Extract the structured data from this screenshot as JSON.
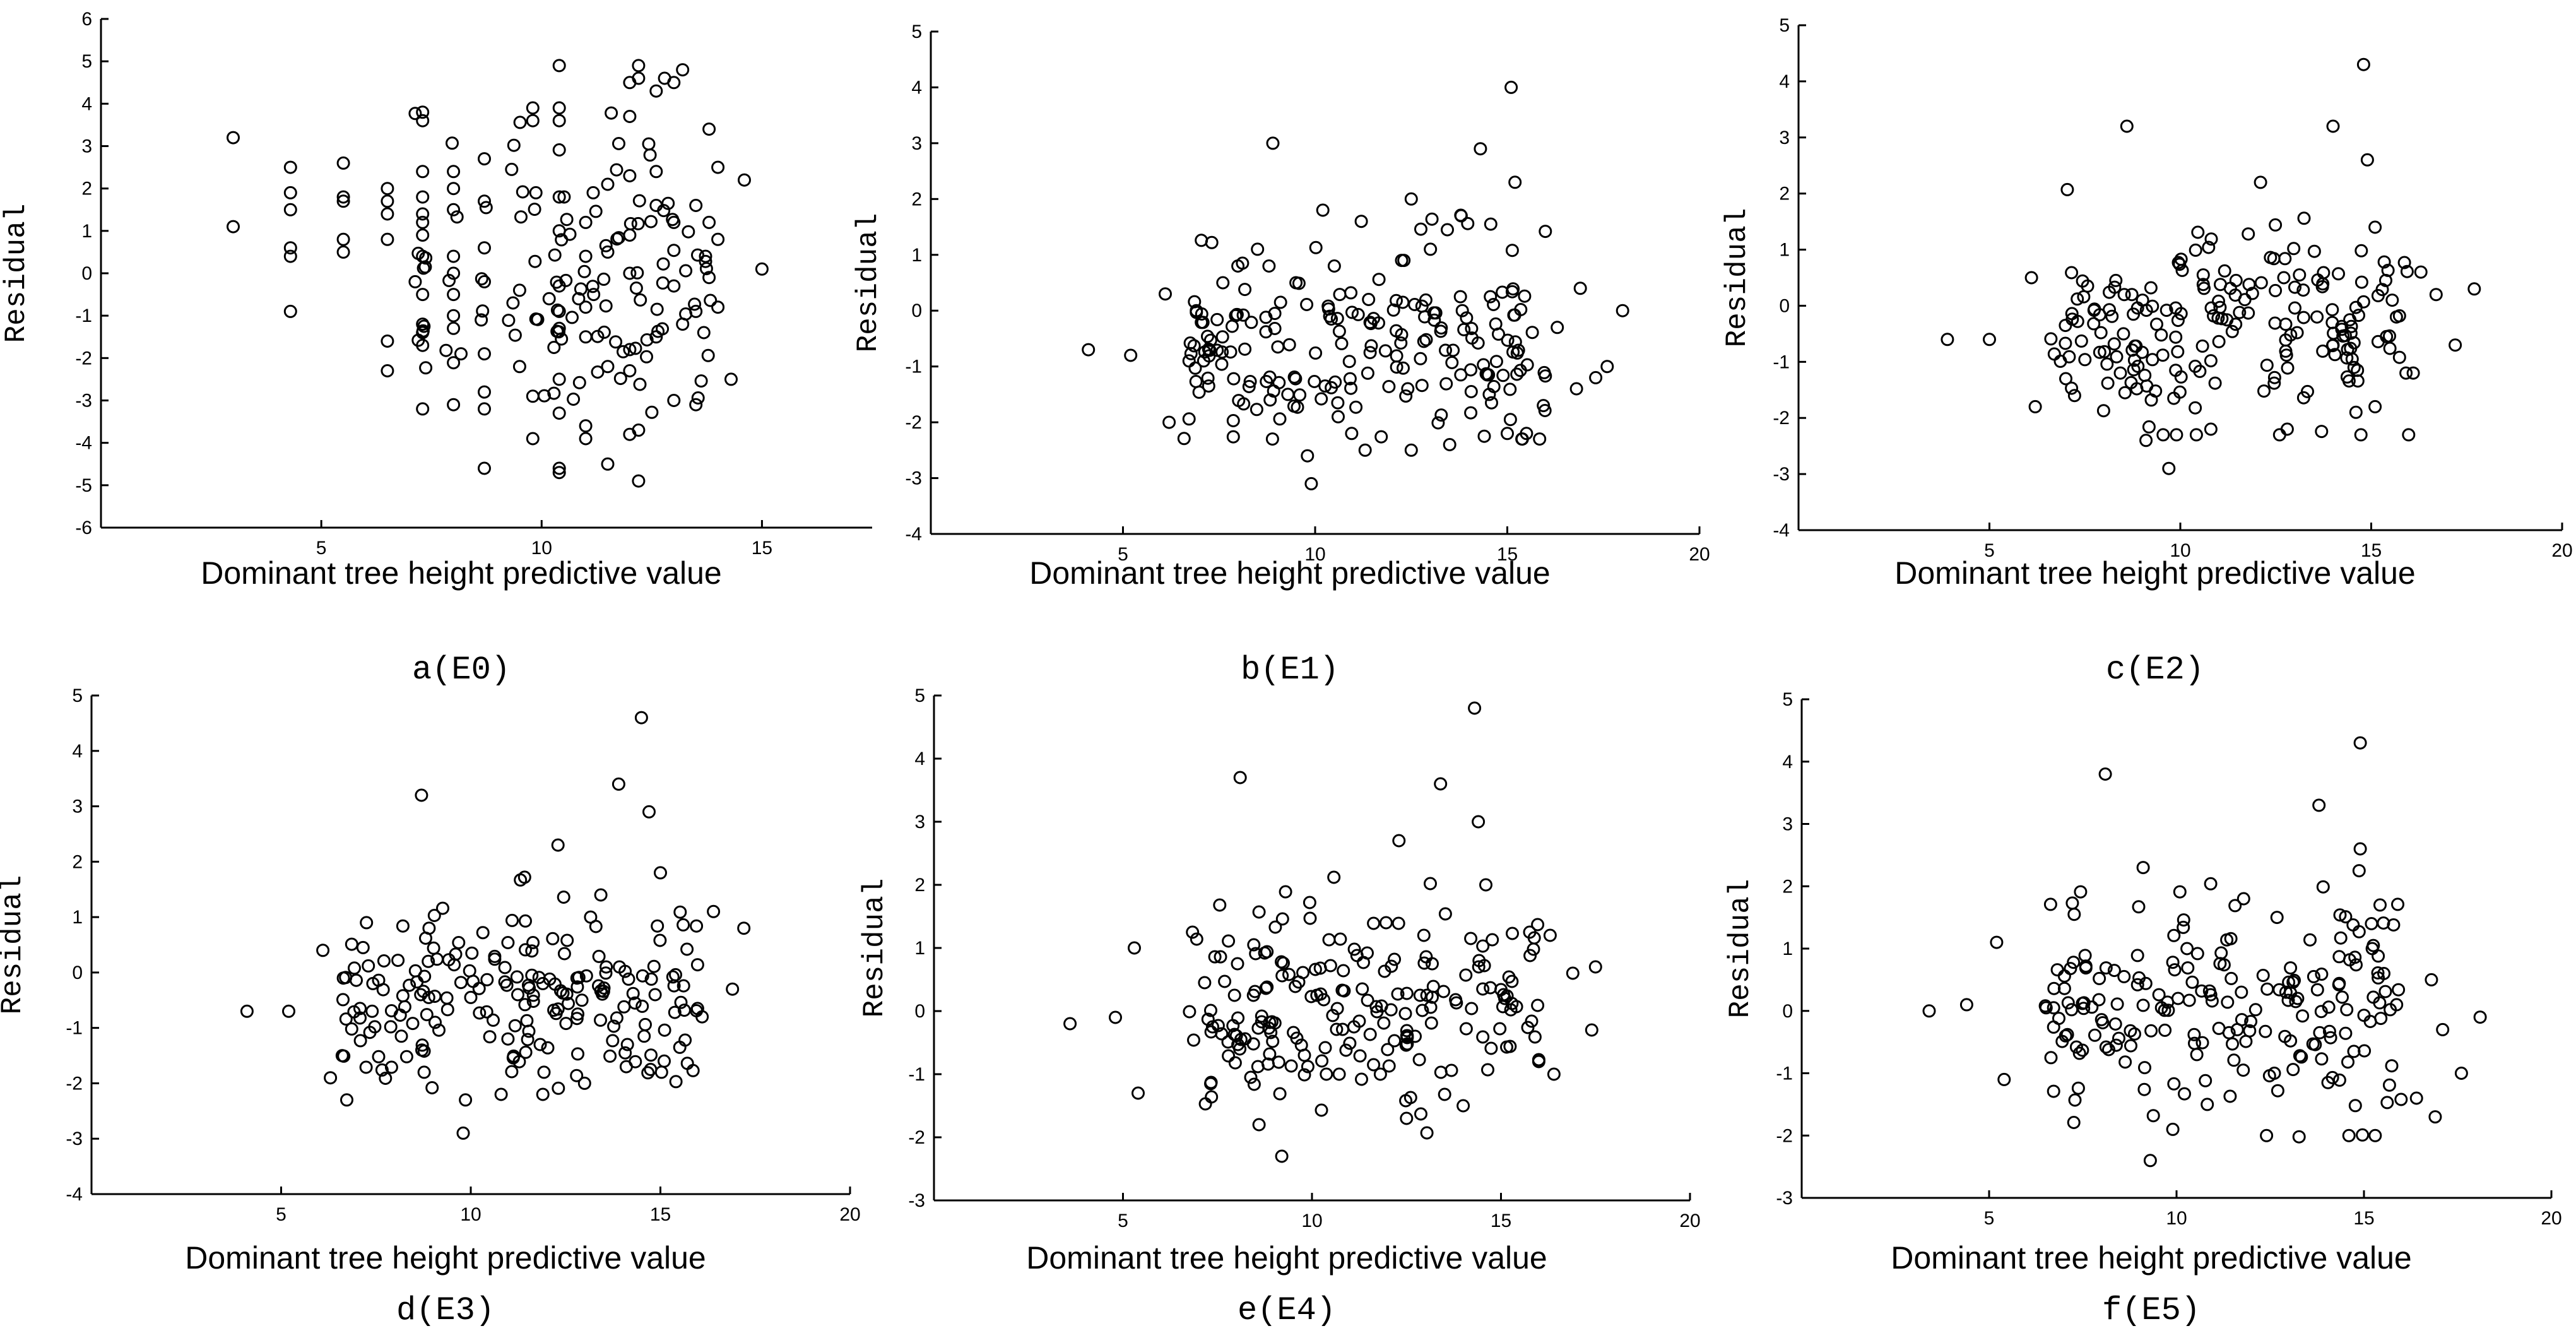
{
  "chart_data": [
    {
      "type": "scatter",
      "caption": "a(E0)",
      "xlabel": "Dominant tree height predictive value",
      "ylabel": "Residual",
      "xlim": [
        0,
        17.5
      ],
      "ylim": [
        -6,
        6
      ],
      "xticks": [
        5,
        10,
        15
      ],
      "yticks": [
        -6,
        -5,
        -4,
        -3,
        -2,
        -1,
        0,
        1,
        2,
        3,
        4,
        5,
        6
      ],
      "seed": 11,
      "points": [
        [
          3.0,
          3.2
        ],
        [
          3.0,
          1.1
        ],
        [
          4.3,
          2.5
        ],
        [
          4.3,
          1.9
        ],
        [
          4.3,
          1.5
        ],
        [
          4.3,
          0.6
        ],
        [
          4.3,
          0.4
        ],
        [
          4.3,
          -0.9
        ],
        [
          5.5,
          2.6
        ],
        [
          5.5,
          1.8
        ],
        [
          5.5,
          1.7
        ],
        [
          5.5,
          0.8
        ],
        [
          5.5,
          0.5
        ],
        [
          6.5,
          2.0
        ],
        [
          6.5,
          1.7
        ],
        [
          6.5,
          1.4
        ],
        [
          6.5,
          0.8
        ],
        [
          6.5,
          -1.6
        ],
        [
          6.5,
          -2.3
        ],
        [
          7.3,
          3.8
        ],
        [
          7.3,
          3.6
        ],
        [
          7.3,
          2.4
        ],
        [
          7.3,
          1.8
        ],
        [
          7.3,
          1.4
        ],
        [
          7.3,
          1.2
        ],
        [
          7.3,
          0.9
        ],
        [
          7.3,
          0.4
        ],
        [
          7.3,
          -0.5
        ],
        [
          7.3,
          -1.2
        ],
        [
          7.3,
          -1.4
        ],
        [
          7.3,
          -1.7
        ],
        [
          7.3,
          -3.2
        ],
        [
          8.0,
          2.4
        ],
        [
          8.0,
          2.0
        ],
        [
          8.0,
          1.5
        ],
        [
          8.0,
          0.4
        ],
        [
          8.0,
          0.0
        ],
        [
          8.0,
          -0.5
        ],
        [
          8.0,
          -1.0
        ],
        [
          8.0,
          -1.3
        ],
        [
          8.0,
          -3.1
        ],
        [
          8.7,
          2.7
        ],
        [
          8.7,
          1.7
        ],
        [
          8.7,
          0.6
        ],
        [
          8.7,
          -0.2
        ],
        [
          8.7,
          -1.9
        ],
        [
          8.7,
          -2.8
        ],
        [
          8.7,
          -3.2
        ],
        [
          8.7,
          -4.6
        ],
        [
          9.5,
          -0.4
        ],
        [
          9.5,
          -2.2
        ],
        [
          9.8,
          3.9
        ],
        [
          9.8,
          3.6
        ],
        [
          9.8,
          -2.9
        ],
        [
          9.8,
          -3.9
        ],
        [
          10.4,
          4.9
        ],
        [
          10.4,
          3.9
        ],
        [
          10.4,
          3.6
        ],
        [
          10.4,
          1.8
        ],
        [
          10.4,
          1.0
        ],
        [
          10.4,
          -0.3
        ],
        [
          10.4,
          -0.9
        ],
        [
          10.4,
          -1.3
        ],
        [
          10.4,
          -2.5
        ],
        [
          10.4,
          -3.3
        ],
        [
          10.4,
          -4.6
        ],
        [
          10.4,
          -4.7
        ],
        [
          11.0,
          1.2
        ],
        [
          11.0,
          0.4
        ],
        [
          11.0,
          -0.8
        ],
        [
          11.0,
          -1.5
        ],
        [
          11.0,
          -3.6
        ],
        [
          11.0,
          -3.9
        ],
        [
          11.5,
          2.1
        ],
        [
          11.5,
          0.5
        ],
        [
          11.5,
          -2.2
        ],
        [
          11.5,
          -4.5
        ],
        [
          12.0,
          4.5
        ],
        [
          12.0,
          3.7
        ],
        [
          12.0,
          2.3
        ],
        [
          12.0,
          0.9
        ],
        [
          12.0,
          0.0
        ],
        [
          12.0,
          -1.8
        ],
        [
          12.0,
          -2.3
        ],
        [
          12.0,
          -3.8
        ],
        [
          12.2,
          4.9
        ],
        [
          12.2,
          4.6
        ],
        [
          12.2,
          -3.7
        ],
        [
          12.2,
          -4.9
        ],
        [
          12.6,
          4.3
        ],
        [
          12.6,
          2.4
        ],
        [
          12.6,
          1.6
        ],
        [
          12.6,
          -1.5
        ],
        [
          13.0,
          4.5
        ],
        [
          13.0,
          1.2
        ],
        [
          13.0,
          -0.3
        ],
        [
          13.0,
          -3.0
        ],
        [
          13.2,
          4.8
        ],
        [
          13.2,
          -1.2
        ],
        [
          13.5,
          1.6
        ],
        [
          13.5,
          -0.9
        ],
        [
          13.5,
          -3.1
        ],
        [
          13.8,
          3.4
        ],
        [
          13.8,
          1.2
        ],
        [
          13.8,
          -0.1
        ],
        [
          14.0,
          2.5
        ],
        [
          14.0,
          0.8
        ],
        [
          14.0,
          -0.8
        ],
        [
          14.3,
          -2.5
        ],
        [
          14.6,
          2.2
        ],
        [
          15.0,
          0.1
        ]
      ]
    },
    {
      "type": "scatter",
      "caption": "b(E1)",
      "xlabel": "Dominant tree height predictive value",
      "ylabel": "Residual",
      "xlim": [
        0,
        20
      ],
      "ylim": [
        -4,
        5
      ],
      "xticks": [
        5,
        10,
        15,
        20
      ],
      "yticks": [
        -4,
        -3,
        -2,
        -1,
        0,
        1,
        2,
        3,
        4,
        5
      ],
      "seed": 23,
      "points": [
        [
          4.1,
          -0.7
        ],
        [
          5.2,
          -0.8
        ],
        [
          6.1,
          0.3
        ],
        [
          6.2,
          -2.0
        ],
        [
          8.9,
          3.0
        ],
        [
          10.2,
          1.8
        ],
        [
          11.2,
          1.6
        ],
        [
          12.5,
          2.0
        ],
        [
          13.8,
          1.7
        ],
        [
          14.3,
          2.9
        ],
        [
          15.1,
          4.0
        ],
        [
          15.2,
          2.3
        ],
        [
          9.9,
          -3.1
        ],
        [
          9.8,
          -2.6
        ],
        [
          11.3,
          -2.5
        ],
        [
          12.5,
          -2.5
        ],
        [
          13.5,
          -2.4
        ],
        [
          15.0,
          -2.2
        ],
        [
          15.5,
          -2.2
        ],
        [
          16.8,
          -1.4
        ],
        [
          17.3,
          -1.2
        ],
        [
          18.0,
          0.0
        ],
        [
          17.6,
          -1.0
        ],
        [
          16.9,
          0.4
        ],
        [
          16.3,
          -0.3
        ],
        [
          7.6,
          0.5
        ],
        [
          8.5,
          1.1
        ],
        [
          8.8,
          0.8
        ],
        [
          10.5,
          0.8
        ],
        [
          13.0,
          1.1
        ]
      ]
    },
    {
      "type": "scatter",
      "caption": "c(E2)",
      "xlabel": "Dominant tree height predictive value",
      "ylabel": "Residual",
      "xlim": [
        0,
        20
      ],
      "ylim": [
        -4,
        5
      ],
      "xticks": [
        5,
        10,
        15,
        20
      ],
      "yticks": [
        -4,
        -3,
        -2,
        -1,
        0,
        1,
        2,
        3,
        4,
        5
      ],
      "seed": 37,
      "points": [
        [
          3.9,
          -0.6
        ],
        [
          5.0,
          -0.6
        ],
        [
          6.1,
          0.5
        ],
        [
          8.6,
          3.2
        ],
        [
          9.7,
          -2.9
        ],
        [
          12.1,
          2.2
        ],
        [
          14.0,
          3.2
        ],
        [
          14.8,
          4.3
        ],
        [
          14.9,
          2.6
        ],
        [
          15.1,
          1.4
        ],
        [
          16.1,
          -1.2
        ],
        [
          16.3,
          0.6
        ],
        [
          16.7,
          0.2
        ],
        [
          17.2,
          -0.7
        ],
        [
          17.7,
          0.3
        ],
        [
          14.6,
          -1.9
        ],
        [
          15.1,
          -1.8
        ],
        [
          9.1,
          -2.4
        ],
        [
          10.8,
          -2.2
        ],
        [
          12.8,
          -2.2
        ],
        [
          7.0,
          -1.3
        ],
        [
          6.2,
          -1.8
        ]
      ]
    },
    {
      "type": "scatter",
      "caption": "d(E3)",
      "xlabel": "Dominant tree height predictive value",
      "ylabel": "Residual",
      "xlim": [
        0,
        20
      ],
      "ylim": [
        -4,
        5
      ],
      "xticks": [
        5,
        10,
        15,
        20
      ],
      "yticks": [
        -4,
        -3,
        -2,
        -1,
        0,
        1,
        2,
        3,
        4,
        5
      ],
      "seed": 41,
      "points": [
        [
          4.1,
          -0.7
        ],
        [
          5.2,
          -0.7
        ],
        [
          6.1,
          0.4
        ],
        [
          6.3,
          -1.9
        ],
        [
          8.7,
          3.2
        ],
        [
          9.8,
          -2.9
        ],
        [
          12.3,
          2.3
        ],
        [
          13.9,
          3.4
        ],
        [
          14.5,
          4.6
        ],
        [
          14.7,
          2.9
        ],
        [
          15.0,
          1.8
        ],
        [
          15.1,
          -1.6
        ],
        [
          16.1,
          -0.8
        ],
        [
          16.4,
          1.1
        ],
        [
          16.9,
          -0.3
        ],
        [
          17.2,
          0.8
        ],
        [
          13.0,
          -2.0
        ],
        [
          11.9,
          -2.2
        ],
        [
          10.8,
          -2.2
        ],
        [
          14.1,
          -1.7
        ]
      ]
    },
    {
      "type": "scatter",
      "caption": "e(E4)",
      "xlabel": "Dominant tree height predictive value",
      "ylabel": "Residual",
      "xlim": [
        0,
        20
      ],
      "ylim": [
        -3,
        5
      ],
      "xticks": [
        5,
        10,
        15,
        20
      ],
      "yticks": [
        -3,
        -2,
        -1,
        0,
        1,
        2,
        3,
        4,
        5
      ],
      "seed": 53,
      "points": [
        [
          3.6,
          -0.2
        ],
        [
          4.8,
          -0.1
        ],
        [
          5.3,
          1.0
        ],
        [
          8.1,
          3.7
        ],
        [
          8.6,
          -1.8
        ],
        [
          9.2,
          -2.3
        ],
        [
          12.3,
          2.7
        ],
        [
          13.4,
          3.6
        ],
        [
          14.3,
          4.8
        ],
        [
          14.4,
          3.0
        ],
        [
          14.6,
          2.0
        ],
        [
          15.1,
          0.2
        ],
        [
          16.0,
          -0.8
        ],
        [
          16.3,
          1.2
        ],
        [
          16.4,
          -1.0
        ],
        [
          16.9,
          0.6
        ],
        [
          17.4,
          -0.3
        ],
        [
          17.5,
          0.7
        ],
        [
          14.0,
          -1.5
        ],
        [
          12.5,
          -1.7
        ],
        [
          5.4,
          -1.3
        ]
      ]
    },
    {
      "type": "scatter",
      "caption": "f(E5)",
      "xlabel": "Dominant tree height predictive value",
      "ylabel": "Residual",
      "xlim": [
        0,
        20
      ],
      "ylim": [
        -3,
        5
      ],
      "xticks": [
        5,
        10,
        15,
        20
      ],
      "yticks": [
        -3,
        -2,
        -1,
        0,
        1,
        2,
        3,
        4,
        5
      ],
      "seed": 67,
      "points": [
        [
          3.4,
          0.0
        ],
        [
          4.4,
          0.1
        ],
        [
          5.2,
          1.1
        ],
        [
          5.4,
          -1.1
        ],
        [
          8.1,
          3.8
        ],
        [
          9.3,
          -2.4
        ],
        [
          13.8,
          3.3
        ],
        [
          14.9,
          4.3
        ],
        [
          14.9,
          2.6
        ],
        [
          15.2,
          1.4
        ],
        [
          16.4,
          -1.4
        ],
        [
          16.8,
          0.5
        ],
        [
          16.9,
          -1.7
        ],
        [
          17.1,
          -0.3
        ],
        [
          17.6,
          -1.0
        ],
        [
          18.1,
          -0.1
        ],
        [
          14.6,
          -2.0
        ],
        [
          15.3,
          -2.0
        ],
        [
          12.4,
          -2.0
        ],
        [
          9.9,
          -1.9
        ]
      ]
    }
  ]
}
